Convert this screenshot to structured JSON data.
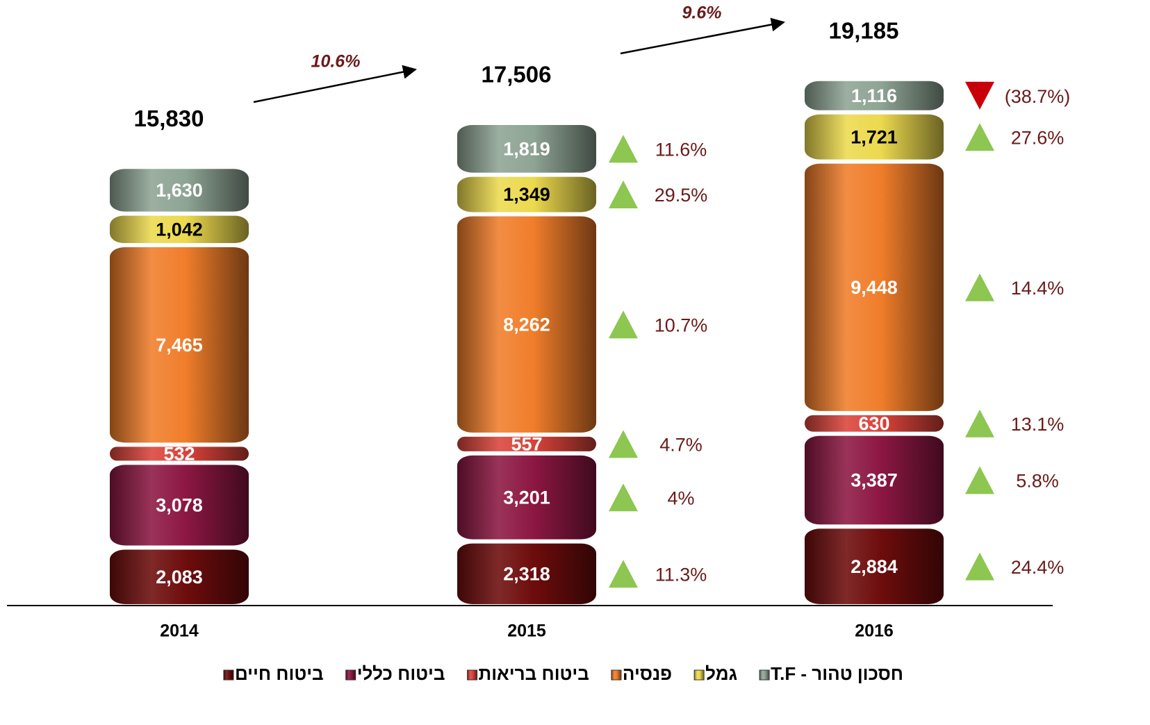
{
  "chart_data": {
    "type": "stacked_bar",
    "categories": [
      "2014",
      "2015",
      "2016"
    ],
    "series": [
      {
        "name": "ביטוח חיים",
        "color": "#6e0c0c",
        "values": [
          2083,
          2318,
          2884
        ],
        "value_labels": [
          "2,083",
          "2,318",
          "2,884"
        ],
        "change_values": [
          null,
          11.3,
          24.4
        ],
        "change_labels": [
          null,
          "11.3%",
          "24.4%"
        ]
      },
      {
        "name": "ביטוח כללי",
        "color": "#8c1742",
        "values": [
          3078,
          3201,
          3387
        ],
        "value_labels": [
          "3,078",
          "3,201",
          "3,387"
        ],
        "change_values": [
          null,
          4,
          5.8
        ],
        "change_labels": [
          null,
          "4%",
          "5.8%"
        ]
      },
      {
        "name": "ביטוח בריאות",
        "color": "#d9433a",
        "values": [
          532,
          557,
          630
        ],
        "value_labels": [
          "532",
          "557",
          "630"
        ],
        "change_values": [
          null,
          4.7,
          13.1
        ],
        "change_labels": [
          null,
          "4.7%",
          "13.1%"
        ]
      },
      {
        "name": "פנסיה",
        "color": "#f07d2a",
        "values": [
          7465,
          8262,
          9448
        ],
        "value_labels": [
          "7,465",
          "8,262",
          "9,448"
        ],
        "change_values": [
          null,
          10.7,
          14.4
        ],
        "change_labels": [
          null,
          "10.7%",
          "14.4%"
        ]
      },
      {
        "name": "גמל",
        "color": "#ecd94e",
        "values": [
          1042,
          1349,
          1721
        ],
        "value_labels": [
          "1,042",
          "1,349",
          "1,721"
        ],
        "change_values": [
          null,
          29.5,
          27.6
        ],
        "change_labels": [
          null,
          "29.5%",
          "27.6%"
        ]
      },
      {
        "name": "חסכון טהור - T.F",
        "color": "#8ea494",
        "values": [
          1630,
          1819,
          1116
        ],
        "value_labels": [
          "1,630",
          "1,819",
          "1,116"
        ],
        "change_values": [
          null,
          11.6,
          -38.7
        ],
        "change_labels": [
          null,
          "11.6%",
          "(38.7%)"
        ]
      }
    ],
    "totals": [
      15830,
      17506,
      19185
    ],
    "total_labels": [
      "15,830",
      "17,506",
      "19,185"
    ],
    "growth": [
      10.6,
      9.6
    ],
    "growth_labels": [
      "10.6%",
      "9.6%"
    ],
    "ylim": [
      0,
      20000
    ]
  }
}
